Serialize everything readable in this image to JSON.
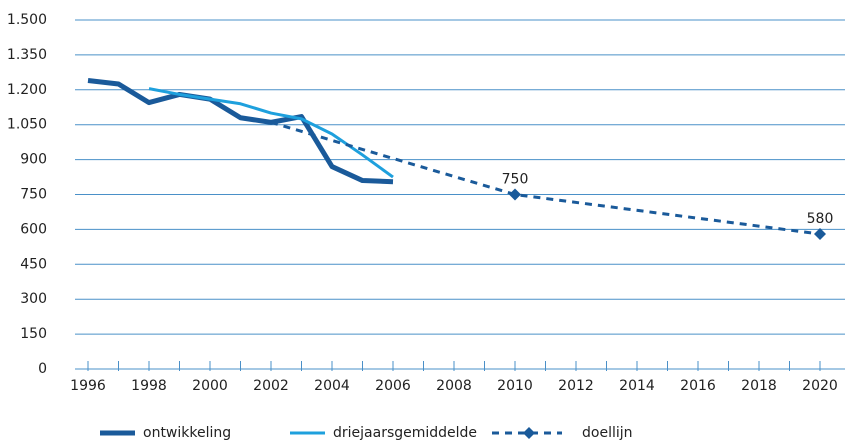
{
  "chart_data": {
    "type": "line",
    "xlim": [
      1996,
      2020
    ],
    "xticks": [
      1996,
      1998,
      2000,
      2002,
      2004,
      2006,
      2008,
      2010,
      2012,
      2014,
      2016,
      2018,
      2020
    ],
    "xminorticks": [
      1997,
      1999,
      2001,
      2003,
      2005,
      2007,
      2009,
      2011,
      2013,
      2015,
      2017,
      2019
    ],
    "ylim": [
      0,
      1500
    ],
    "yticks": [
      0,
      150,
      300,
      450,
      600,
      750,
      900,
      {
        "value": 1050,
        "label": "1.050"
      },
      {
        "value": 1200,
        "label": "1.200"
      },
      {
        "value": 1350,
        "label": "1.350"
      },
      {
        "value": 1500,
        "label": "1.500"
      }
    ],
    "grid": true,
    "legend": "bottom",
    "series": [
      {
        "name": "ontwikkeling",
        "color": "#1a5a9a",
        "style": "thick",
        "x": [
          1996,
          1997,
          1998,
          1999,
          2000,
          2001,
          2002,
          2003,
          2004,
          2005,
          2006
        ],
        "values": [
          1240,
          1225,
          1145,
          1180,
          1160,
          1080,
          1060,
          1085,
          870,
          810,
          805
        ]
      },
      {
        "name": "driejaarsgemiddelde",
        "color": "#1ea0dd",
        "style": "solid",
        "x": [
          1998,
          1999,
          2000,
          2001,
          2002,
          2003,
          2004,
          2005,
          2006
        ],
        "values": [
          1205,
          1180,
          1160,
          1140,
          1100,
          1075,
          1010,
          920,
          825
        ]
      },
      {
        "name": "doellijn",
        "color": "#1a5a9a",
        "style": "dashed",
        "x": [
          2002,
          2010,
          2020
        ],
        "values": [
          1060,
          750,
          580
        ],
        "value_labels": [
          null,
          "750",
          "580"
        ]
      }
    ]
  }
}
